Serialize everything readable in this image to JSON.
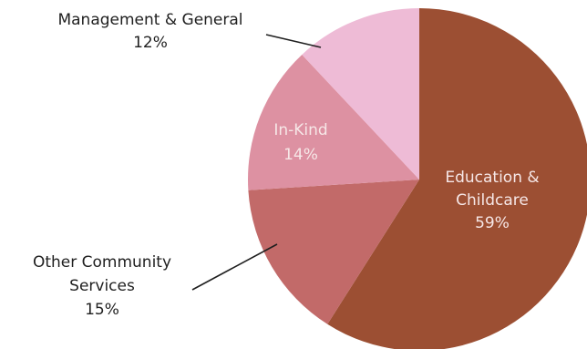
{
  "chart_data": {
    "type": "pie",
    "slices": [
      {
        "name": "Education & Childcare",
        "label_lines": [
          "Education &",
          "Childcare"
        ],
        "percent_label": "59%",
        "value": 59,
        "color": "#9c4f33",
        "label_placement": "inside",
        "label_color": "#f6e7e7"
      },
      {
        "name": "Other Community Services",
        "label_lines": [
          "Other Community",
          "Services"
        ],
        "percent_label": "15%",
        "value": 15,
        "color": "#c26a69",
        "label_placement": "outside",
        "label_color": "#1f1f1f"
      },
      {
        "name": "In-Kind",
        "label_lines": [
          "In-Kind"
        ],
        "percent_label": "14%",
        "value": 14,
        "color": "#dd91a2",
        "label_placement": "inside",
        "label_color": "#f6e7e7"
      },
      {
        "name": "Management & General",
        "label_lines": [
          "Management & General"
        ],
        "percent_label": "12%",
        "value": 12,
        "color": "#eebbd6",
        "label_placement": "outside",
        "label_color": "#1f1f1f"
      }
    ]
  }
}
